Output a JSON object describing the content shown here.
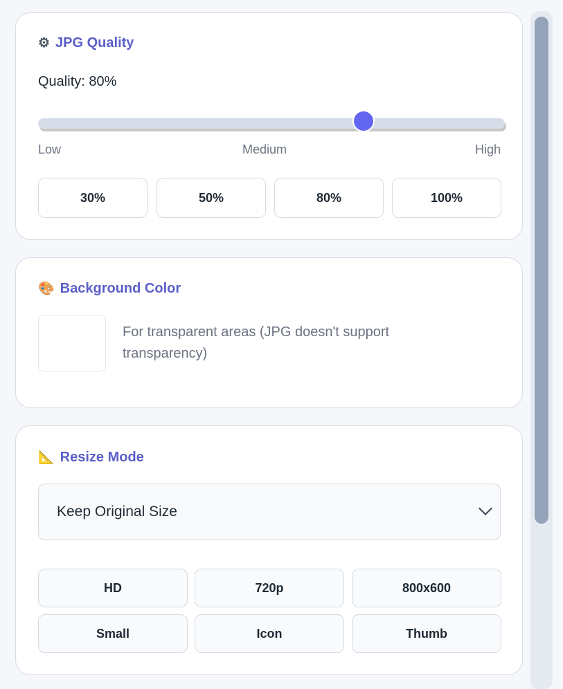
{
  "quality": {
    "icon": "gear-icon",
    "title": "JPG Quality",
    "label": "Quality: 80%",
    "value": 80,
    "ticks": [
      "Low",
      "Medium",
      "High"
    ],
    "presets": [
      "30%",
      "50%",
      "80%",
      "100%"
    ],
    "accent": "#6366f1"
  },
  "background": {
    "icon": "palette-icon",
    "title": "Background Color",
    "color": "#ffffff",
    "hint": "For transparent areas (JPG doesn't support transparency)"
  },
  "resize": {
    "icon": "triangular-ruler-icon",
    "title": "Resize Mode",
    "selected": "Keep Original Size",
    "presets": [
      "HD",
      "720p",
      "800x600",
      "Small",
      "Icon",
      "Thumb"
    ]
  },
  "colors": {
    "title": "#5b5fc7",
    "scrollbar": "#94a3b8"
  }
}
